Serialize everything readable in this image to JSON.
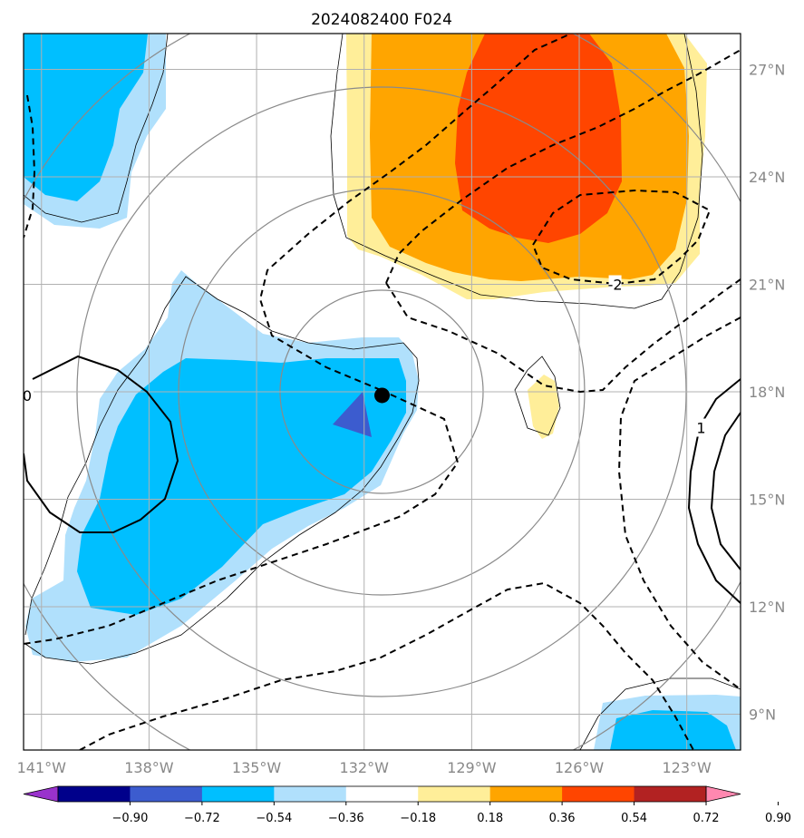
{
  "title": "2024082400 F024",
  "map": {
    "lon_range": [
      -141.5,
      -121.5
    ],
    "lat_range": [
      8,
      28
    ],
    "lon_ticks": [
      -141,
      -138,
      -135,
      -132,
      -129,
      -126,
      -123
    ],
    "lon_tick_labels": [
      "141°W",
      "138°W",
      "135°W",
      "132°W",
      "129°W",
      "126°W",
      "123°W"
    ],
    "lat_ticks": [
      9,
      12,
      15,
      18,
      21,
      24,
      27
    ],
    "lat_tick_labels": [
      "9°N",
      "12°N",
      "15°N",
      "18°N",
      "21°N",
      "24°N",
      "27°N"
    ],
    "grid": true,
    "center_marker": {
      "lon": -131.5,
      "lat": 17.9,
      "color": "#000000"
    },
    "fill_colors": {
      "light_blue": "#b0e0fc",
      "blue": "#00bfff",
      "royal_blue": "#3c5ccf",
      "light_yellow": "#ffee99",
      "orange": "#ffa500",
      "red_orange": "#ff4500"
    },
    "contour_labels": [
      {
        "text": "-2",
        "lon": -125.0,
        "lat": 21.0
      },
      {
        "text": "0",
        "lon": -141.4,
        "lat": 17.9
      },
      {
        "text": "1",
        "lon": -122.6,
        "lat": 17.0
      }
    ]
  },
  "colorbar": {
    "colors": [
      "#9932cc",
      "#00008b",
      "#3c5ccf",
      "#00bfff",
      "#b0e0fc",
      "#ffffff",
      "#ffee99",
      "#ffa500",
      "#ff4500",
      "#b22222",
      "#ff88b0"
    ],
    "labels": [
      "−0.90",
      "−0.72",
      "−0.54",
      "−0.36",
      "−0.18",
      "0.18",
      "0.36",
      "0.54",
      "0.72",
      "0.90"
    ]
  }
}
